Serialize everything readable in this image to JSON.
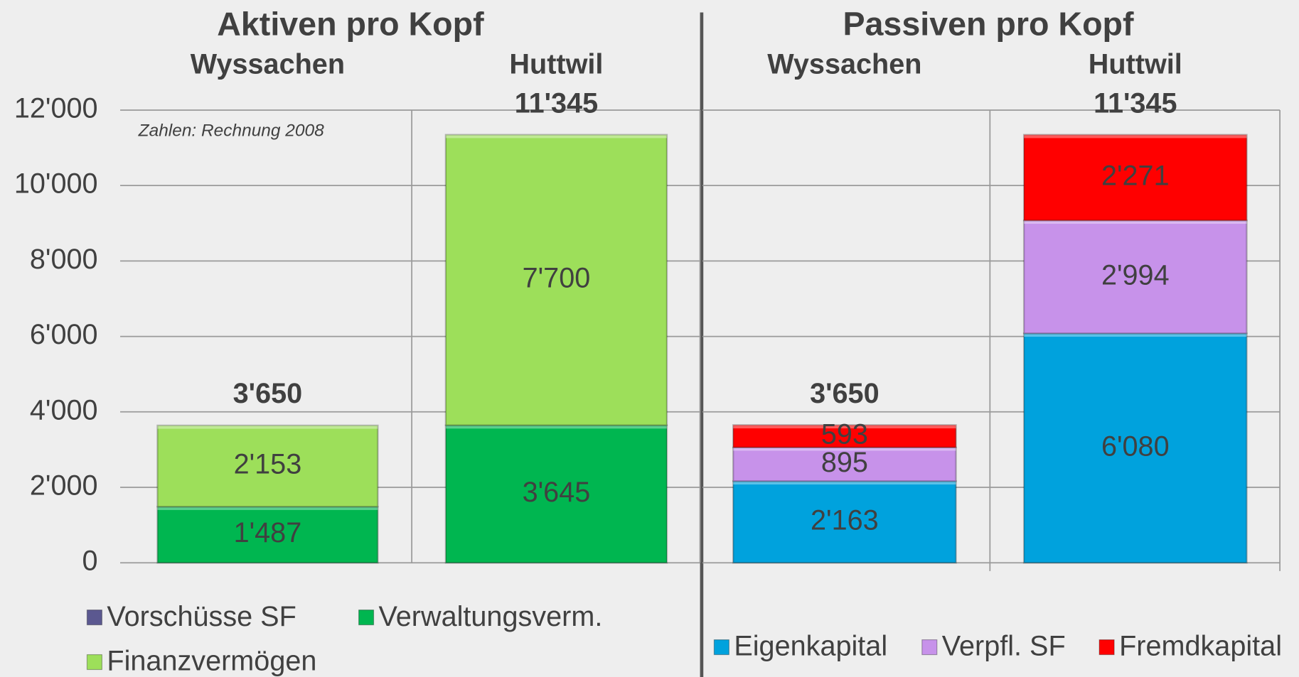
{
  "chart_data": [
    {
      "type": "bar",
      "stacked": true,
      "title": "Aktiven pro Kopf",
      "annotation": "Zahlen: Rechnung 2008",
      "categories": [
        "Wyssachen",
        "Huttwil"
      ],
      "series": [
        {
          "name": "Vorschüsse SF",
          "color": "#5b5890",
          "values": [
            null,
            null
          ]
        },
        {
          "name": "Verwaltungsverm.",
          "color": "#00b650",
          "values": [
            1487,
            3645
          ],
          "value_labels": [
            "1'487",
            "3'645"
          ]
        },
        {
          "name": "Finanzvermögen",
          "color": "#9ddf5a",
          "values": [
            2153,
            7700
          ],
          "value_labels": [
            "2'153",
            "7'700"
          ]
        }
      ],
      "totals": [
        3650,
        11345
      ],
      "total_labels": [
        "3'650",
        "11'345"
      ],
      "ylim": [
        0,
        12000
      ],
      "yticks": [
        0,
        {
          "value": 2000,
          "label": "2'000"
        },
        {
          "value": 4000,
          "label": "4'000"
        },
        {
          "value": 6000,
          "label": "6'000"
        },
        {
          "value": 8000,
          "label": "8'000"
        },
        {
          "value": 10000,
          "label": "10'000"
        },
        {
          "value": 12000,
          "label": "12'000"
        }
      ],
      "grid": true
    },
    {
      "type": "bar",
      "stacked": true,
      "title": "Passiven pro Kopf",
      "categories": [
        "Wyssachen",
        "Huttwil"
      ],
      "series": [
        {
          "name": "Eigenkapital",
          "color": "#00a2dd",
          "values": [
            2163,
            6080
          ],
          "value_labels": [
            "2'163",
            "6'080"
          ]
        },
        {
          "name": "Verpfl. SF",
          "color": "#c792ea",
          "values": [
            895,
            2994
          ],
          "value_labels": [
            "895",
            "2'994"
          ]
        },
        {
          "name": "Fremdkapital",
          "color": "#ff0000",
          "values": [
            593,
            2271
          ],
          "value_labels": [
            "593",
            "2'271"
          ]
        }
      ],
      "totals": [
        3650,
        11345
      ],
      "total_labels": [
        "3'650",
        "11'345"
      ],
      "ylim": [
        0,
        12000
      ],
      "grid": true
    }
  ]
}
